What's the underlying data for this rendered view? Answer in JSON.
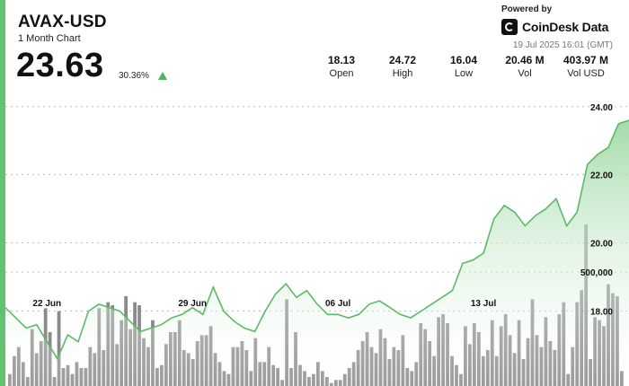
{
  "header": {
    "pair": "AVAX-USD",
    "subtitle": "1 Month Chart",
    "price": "23.63",
    "change": "30.36%",
    "powered_by": "Powered by",
    "brand": "CoinDesk Data",
    "timestamp": "19 Jul 2025 16:01 (GMT)"
  },
  "stats": [
    {
      "value": "18.13",
      "label": "Open"
    },
    {
      "value": "24.72",
      "label": "High"
    },
    {
      "value": "16.04",
      "label": "Low"
    },
    {
      "value": "20.46 M",
      "label": "Vol"
    },
    {
      "value": "403.97 M",
      "label": "Vol USD"
    }
  ],
  "colors": {
    "accent": "#62c26f",
    "line": "#5cb968",
    "area_top": "#9fd9a5",
    "volume": "#7a7a7a",
    "grid": "#bdbdbd"
  },
  "chart_data": {
    "type": "area",
    "series": [
      {
        "name": "Price",
        "x": [
          0,
          0.5,
          1,
          1.5,
          2,
          2.5,
          3,
          3.5,
          4,
          4.5,
          5,
          5.5,
          6,
          6.5,
          7,
          7.5,
          8,
          8.5,
          9,
          9.5,
          10,
          10.5,
          11,
          11.5,
          12,
          12.5,
          13,
          13.5,
          14,
          14.5,
          15,
          15.5,
          16,
          16.5,
          17,
          17.5,
          18,
          18.5,
          19,
          19.5,
          20,
          20.5,
          21,
          21.5,
          22,
          22.5,
          23,
          23.5,
          24,
          24.5,
          25,
          25.5,
          26,
          26.5,
          27,
          27.5,
          28,
          28.5,
          29,
          29.5,
          30
        ],
        "values": [
          18.1,
          17.8,
          17.5,
          17.6,
          17.1,
          16.6,
          17.3,
          17.1,
          18.0,
          18.2,
          18.1,
          18.0,
          17.7,
          17.4,
          17.5,
          17.6,
          17.8,
          17.9,
          18.1,
          17.9,
          18.7,
          18.0,
          17.7,
          17.5,
          17.4,
          18.0,
          18.5,
          18.8,
          18.4,
          18.6,
          18.2,
          17.9,
          17.9,
          17.8,
          17.9,
          18.2,
          18.3,
          18.1,
          17.9,
          17.8,
          18.0,
          18.2,
          18.4,
          18.6,
          19.4,
          19.5,
          19.7,
          20.7,
          21.1,
          20.9,
          20.5,
          20.8,
          21.0,
          21.3,
          20.5,
          20.9,
          22.3,
          22.6,
          22.8,
          23.5,
          23.6
        ]
      }
    ],
    "volume": [
      4,
      10,
      13,
      8,
      3,
      19,
      11,
      15,
      26,
      18,
      3,
      25,
      6,
      7,
      4,
      8,
      6,
      6,
      13,
      11,
      26,
      12,
      28,
      27,
      14,
      22,
      30,
      19,
      28,
      27,
      16,
      13,
      22,
      6,
      7,
      14,
      18,
      18,
      22,
      12,
      11,
      9,
      15,
      17,
      17,
      20,
      11,
      8,
      5,
      4,
      13,
      13,
      15,
      12,
      5,
      16,
      8,
      8,
      13,
      7,
      6,
      2,
      29,
      6,
      18,
      7,
      5,
      3,
      4,
      8,
      5,
      3,
      1,
      2,
      2,
      4,
      6,
      8,
      12,
      15,
      18,
      13,
      11,
      19,
      16,
      9,
      13,
      12,
      17,
      6,
      5,
      8,
      21,
      19,
      15,
      10,
      23,
      24,
      21,
      10,
      7,
      4,
      20,
      14,
      21,
      18,
      10,
      12,
      22,
      10,
      20,
      24,
      17,
      11,
      22,
      9,
      16,
      29,
      17,
      13,
      23,
      15,
      12,
      24,
      28,
      4,
      13,
      28,
      32,
      54,
      9,
      23,
      22,
      20,
      34,
      31,
      30,
      5
    ],
    "x_tick_labels": [
      "22 Jun",
      "29 Jun",
      "06 Jul",
      "13 Jul"
    ],
    "x_tick_positions": [
      2,
      9,
      16,
      23
    ],
    "y_ticks": [
      "18.00",
      "20.00",
      "22.00",
      "24.00"
    ],
    "y_tick_values": [
      18,
      20,
      22,
      24
    ],
    "volume_tick_label": "500,000",
    "ylim": [
      15.8,
      24.6
    ],
    "xlim": [
      0,
      30
    ],
    "grid": true
  }
}
